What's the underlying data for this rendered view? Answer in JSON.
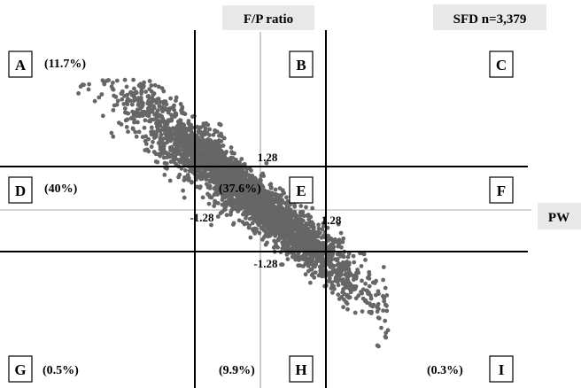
{
  "chart_data": {
    "type": "scatter",
    "title": "F/P ratio",
    "y_axis_label": "F/P ratio",
    "x_axis_label": "PW",
    "sample_label": "SFD n=3,379",
    "thresholds": {
      "positive": "1.28",
      "negative": "-1.28",
      "values": [
        -1.28,
        1.28
      ]
    },
    "xlim": [
      -4.3,
      5.0
    ],
    "ylim": [
      -5.3,
      5.2
    ],
    "grid": false,
    "legend": "none",
    "point_color": "#666666",
    "point_count": 3379,
    "trend": {
      "slope": -1.25,
      "intercept": 0.15,
      "spread": 0.55
    },
    "zones": [
      {
        "letter": "A",
        "percent": "(11.7%)"
      },
      {
        "letter": "B",
        "percent": ""
      },
      {
        "letter": "C",
        "percent": ""
      },
      {
        "letter": "D",
        "percent": "(40%)"
      },
      {
        "letter": "E",
        "percent": "(37.6%)"
      },
      {
        "letter": "F",
        "percent": ""
      },
      {
        "letter": "G",
        "percent": "(0.5%)"
      },
      {
        "letter": "H",
        "percent": "(9.9%)"
      },
      {
        "letter": "I",
        "percent": "(0.3%)"
      }
    ]
  }
}
